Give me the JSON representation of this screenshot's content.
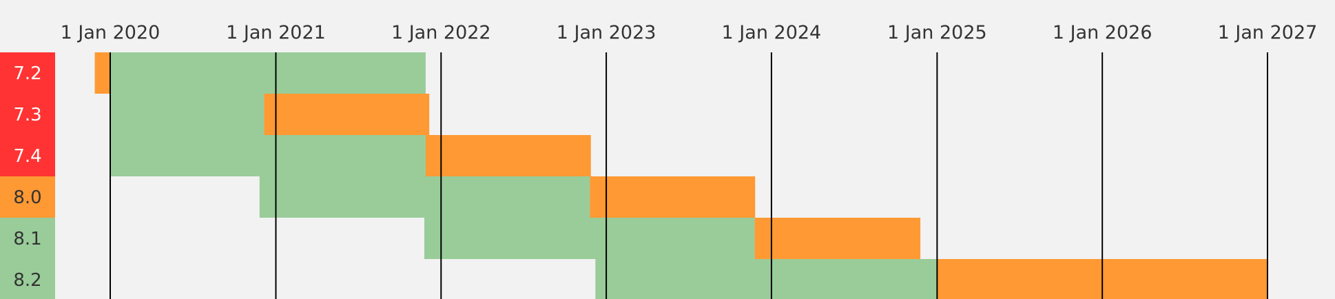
{
  "chart_data": {
    "type": "gantt",
    "title": "",
    "x_axis": {
      "type": "date",
      "range": [
        "2019-09-30",
        "2027-02-15"
      ],
      "tick_labels": [
        "1 Jan 2020",
        "1 Jan 2021",
        "1 Jan 2022",
        "1 Jan 2023",
        "1 Jan 2024",
        "1 Jan 2025",
        "1 Jan 2026",
        "1 Jan 2027"
      ],
      "tick_dates": [
        "2020-01-01",
        "2021-01-01",
        "2022-01-01",
        "2023-01-01",
        "2024-01-01",
        "2025-01-01",
        "2026-01-01",
        "2027-01-01"
      ]
    },
    "rows": [
      {
        "label": "7.2",
        "label_color": "#ff3333",
        "active_support": [
          "2019-11-28",
          "2021-11-28"
        ],
        "security_support": [
          "2019-11-28",
          "2019-12-31"
        ]
      },
      {
        "label": "7.3",
        "label_color": "#ff3333",
        "active_support": [
          "2019-12-31",
          "2020-12-06"
        ],
        "security_support": [
          "2020-12-06",
          "2021-12-06"
        ]
      },
      {
        "label": "7.4",
        "label_color": "#ff3333",
        "active_support": [
          "2019-12-31",
          "2021-11-28"
        ],
        "security_support": [
          "2021-11-28",
          "2022-11-28"
        ]
      },
      {
        "label": "8.0",
        "label_color": "#ff9933",
        "active_support": [
          "2020-11-26",
          "2022-11-26"
        ],
        "security_support": [
          "2022-11-26",
          "2023-11-26"
        ]
      },
      {
        "label": "8.1",
        "label_color": "#99cc99",
        "active_support": [
          "2021-11-25",
          "2023-11-25"
        ],
        "security_support": [
          "2023-11-25",
          "2024-11-25"
        ]
      },
      {
        "label": "8.2",
        "label_color": "#99cc99",
        "active_support": [
          "2022-12-08",
          "2024-12-31"
        ],
        "security_support": [
          "2024-12-31",
          "2026-12-31"
        ]
      }
    ],
    "colors": {
      "active_support": "#99cc99",
      "security_support": "#ff9933",
      "background": "#f2f2f2",
      "gridline": "#000000"
    },
    "grid": true,
    "legend": null
  }
}
